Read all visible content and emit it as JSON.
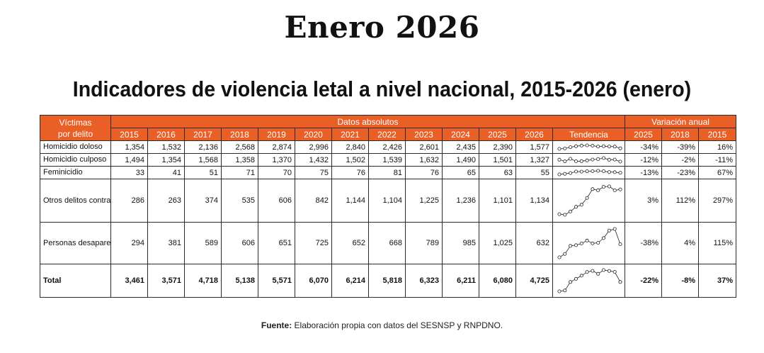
{
  "page_title": "Enero 2026",
  "table_title": "Indicadores de violencia letal a nivel nacional, 2015-2026 (enero)",
  "headers": {
    "victimas_line1": "Víctimas",
    "victimas_line2": "por delito",
    "datos_absolutos": "Datos absolutos",
    "variacion_anual": "Variación anual",
    "tendencia": "Tendencia",
    "years": [
      "2015",
      "2016",
      "2017",
      "2018",
      "2019",
      "2020",
      "2021",
      "2022",
      "2023",
      "2024",
      "2025",
      "2026"
    ],
    "variation_years": [
      "2025",
      "2018",
      "2015"
    ]
  },
  "rows": [
    {
      "label": "Homicidio doloso",
      "values": [
        1354,
        1532,
        2136,
        2568,
        2874,
        2996,
        2840,
        2426,
        2601,
        2435,
        2390,
        1577
      ],
      "display": [
        "1,354",
        "1,532",
        "2,136",
        "2,568",
        "2,874",
        "2,996",
        "2,840",
        "2,426",
        "2,601",
        "2,435",
        "2,390",
        "1,577"
      ],
      "variation": [
        "-34%",
        "-39%",
        "16%"
      ]
    },
    {
      "label": "Homicidio culposo",
      "values": [
        1494,
        1354,
        1568,
        1358,
        1370,
        1432,
        1502,
        1539,
        1632,
        1490,
        1501,
        1327
      ],
      "display": [
        "1,494",
        "1,354",
        "1,568",
        "1,358",
        "1,370",
        "1,432",
        "1,502",
        "1,539",
        "1,632",
        "1,490",
        "1,501",
        "1,327"
      ],
      "variation": [
        "-12%",
        "-2%",
        "-11%"
      ]
    },
    {
      "label": "Feminicidio",
      "values": [
        33,
        41,
        51,
        71,
        70,
        75,
        76,
        81,
        76,
        65,
        63,
        55
      ],
      "display": [
        "33",
        "41",
        "51",
        "71",
        "70",
        "75",
        "76",
        "81",
        "76",
        "65",
        "63",
        "55"
      ],
      "variation": [
        "-13%",
        "-23%",
        "67%"
      ]
    },
    {
      "label": "Otros delitos contra la vida",
      "values": [
        286,
        263,
        374,
        535,
        606,
        842,
        1144,
        1104,
        1225,
        1236,
        1101,
        1134
      ],
      "display": [
        "286",
        "263",
        "374",
        "535",
        "606",
        "842",
        "1,144",
        "1,104",
        "1,225",
        "1,236",
        "1,101",
        "1,134"
      ],
      "variation": [
        "3%",
        "112%",
        "297%"
      ]
    },
    {
      "label": "Personas desaparecidas y no localizadas",
      "values": [
        294,
        381,
        589,
        606,
        651,
        725,
        652,
        668,
        789,
        985,
        1025,
        632
      ],
      "display": [
        "294",
        "381",
        "589",
        "606",
        "651",
        "725",
        "652",
        "668",
        "789",
        "985",
        "1,025",
        "632"
      ],
      "variation": [
        "-38%",
        "4%",
        "115%"
      ]
    },
    {
      "label": "Total",
      "values": [
        3461,
        3571,
        4718,
        5138,
        5571,
        6070,
        6214,
        5818,
        6323,
        6211,
        6080,
        4725
      ],
      "display": [
        "3,461",
        "3,571",
        "4,718",
        "5,138",
        "5,571",
        "6,070",
        "6,214",
        "5,818",
        "6,323",
        "6,211",
        "6,080",
        "4,725"
      ],
      "variation": [
        "-22%",
        "-8%",
        "37%"
      ]
    }
  ],
  "source": {
    "label": "Fuente:",
    "text": " Elaboración propia con datos del SESNSP y RNPDNO."
  },
  "colors": {
    "header_orange": "#ea5f26",
    "header_text": "#ffffff",
    "border": "#2b2b2b"
  }
}
